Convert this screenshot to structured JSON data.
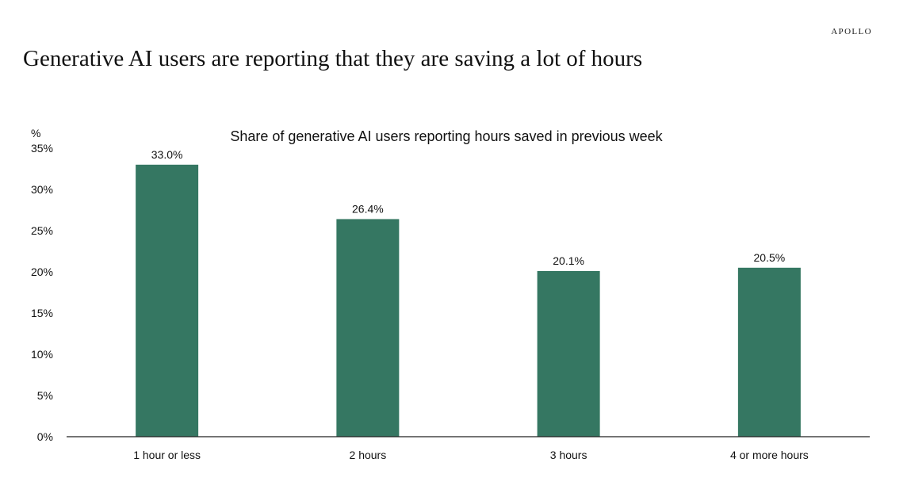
{
  "brand": "APOLLO",
  "page_title": "Generative AI users are reporting that they are saving a lot of hours",
  "colors": {
    "bar": "#357762",
    "axis": "#222222",
    "text": "#111111"
  },
  "chart_data": {
    "type": "bar",
    "title": "Share of generative AI users reporting hours saved in previous week",
    "ylabel": "%",
    "xlabel": "",
    "categories": [
      "1 hour or less",
      "2 hours",
      "3 hours",
      "4 or more hours"
    ],
    "values": [
      33.0,
      26.4,
      20.1,
      20.5
    ],
    "data_labels": [
      "33.0%",
      "26.4%",
      "20.1%",
      "20.5%"
    ],
    "ylim": [
      0,
      35
    ],
    "yticks": [
      0,
      5,
      10,
      15,
      20,
      25,
      30,
      35
    ],
    "ytick_labels": [
      "0%",
      "5%",
      "10%",
      "15%",
      "20%",
      "25%",
      "30%",
      "35%"
    ],
    "grid": false,
    "legend": "none"
  }
}
